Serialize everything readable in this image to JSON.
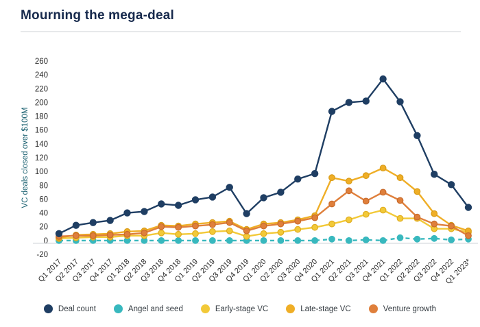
{
  "page": {
    "title": "Mourning the mega-deal"
  },
  "axis": {
    "ylabel": "VC deals closed over $100M",
    "ylabel_color": "#1c6272",
    "tick_color": "#2b2b2b",
    "baseline_color": "#c9ccd1"
  },
  "chart_data": {
    "type": "line",
    "title": "Mourning the mega-deal",
    "xlabel": "",
    "ylabel": "VC deals closed over $100M",
    "ylim": [
      -20,
      260
    ],
    "ytick_step": 20,
    "grid": false,
    "legend_position": "bottom",
    "categories": [
      "Q1 2017",
      "Q2 2017",
      "Q3 2017",
      "Q4 2017",
      "Q1 2018",
      "Q2 2018",
      "Q3 2018",
      "Q4 2018",
      "Q1 2019",
      "Q2 2019",
      "Q3 2019",
      "Q4 2019",
      "Q1 2020",
      "Q2 2020",
      "Q3 2020",
      "Q4 2020",
      "Q1 2021",
      "Q2 2021",
      "Q3 2021",
      "Q4 2021",
      "Q1 2022",
      "Q2 2022",
      "Q3 2022",
      "Q4 2022",
      "Q1 2023*"
    ],
    "series": [
      {
        "name": "Angel and seed",
        "color": "#38b8be",
        "ring": "#38b8be",
        "dashed": true,
        "values": [
          0,
          0,
          0,
          0,
          0,
          0,
          0,
          0,
          0,
          0,
          0,
          0,
          0,
          0,
          0,
          0,
          2,
          0,
          1,
          0,
          4,
          2,
          3,
          1,
          2
        ]
      },
      {
        "name": "Early-stage VC",
        "color": "#f2c938",
        "ring": "#e0ac1e",
        "dashed": false,
        "values": [
          3,
          4,
          5,
          5,
          7,
          7,
          11,
          9,
          10,
          13,
          14,
          6,
          10,
          12,
          16,
          19,
          24,
          30,
          38,
          44,
          32,
          32,
          17,
          17,
          12
        ]
      },
      {
        "name": "Late-stage VC",
        "color": "#efae26",
        "ring": "#d89b17",
        "dashed": false,
        "values": [
          4,
          8,
          9,
          10,
          13,
          14,
          22,
          21,
          24,
          26,
          28,
          16,
          24,
          26,
          30,
          36,
          91,
          86,
          94,
          105,
          91,
          71,
          39,
          22,
          14
        ]
      },
      {
        "name": "Venture growth",
        "color": "#df7f3b",
        "ring": "#c86a2b",
        "dashed": false,
        "values": [
          6,
          7,
          7,
          8,
          9,
          11,
          20,
          19,
          21,
          23,
          26,
          14,
          21,
          24,
          28,
          33,
          53,
          72,
          57,
          70,
          58,
          34,
          24,
          21,
          7
        ]
      },
      {
        "name": "Deal count",
        "color": "#1f3e63",
        "ring": "#1f3e63",
        "dashed": false,
        "values": [
          10,
          22,
          26,
          29,
          40,
          42,
          53,
          51,
          59,
          63,
          77,
          39,
          62,
          70,
          89,
          97,
          187,
          200,
          202,
          234,
          201,
          152,
          96,
          81,
          48
        ]
      }
    ],
    "legend_order": [
      "Deal count",
      "Angel and seed",
      "Early-stage VC",
      "Late-stage VC",
      "Venture growth"
    ]
  }
}
